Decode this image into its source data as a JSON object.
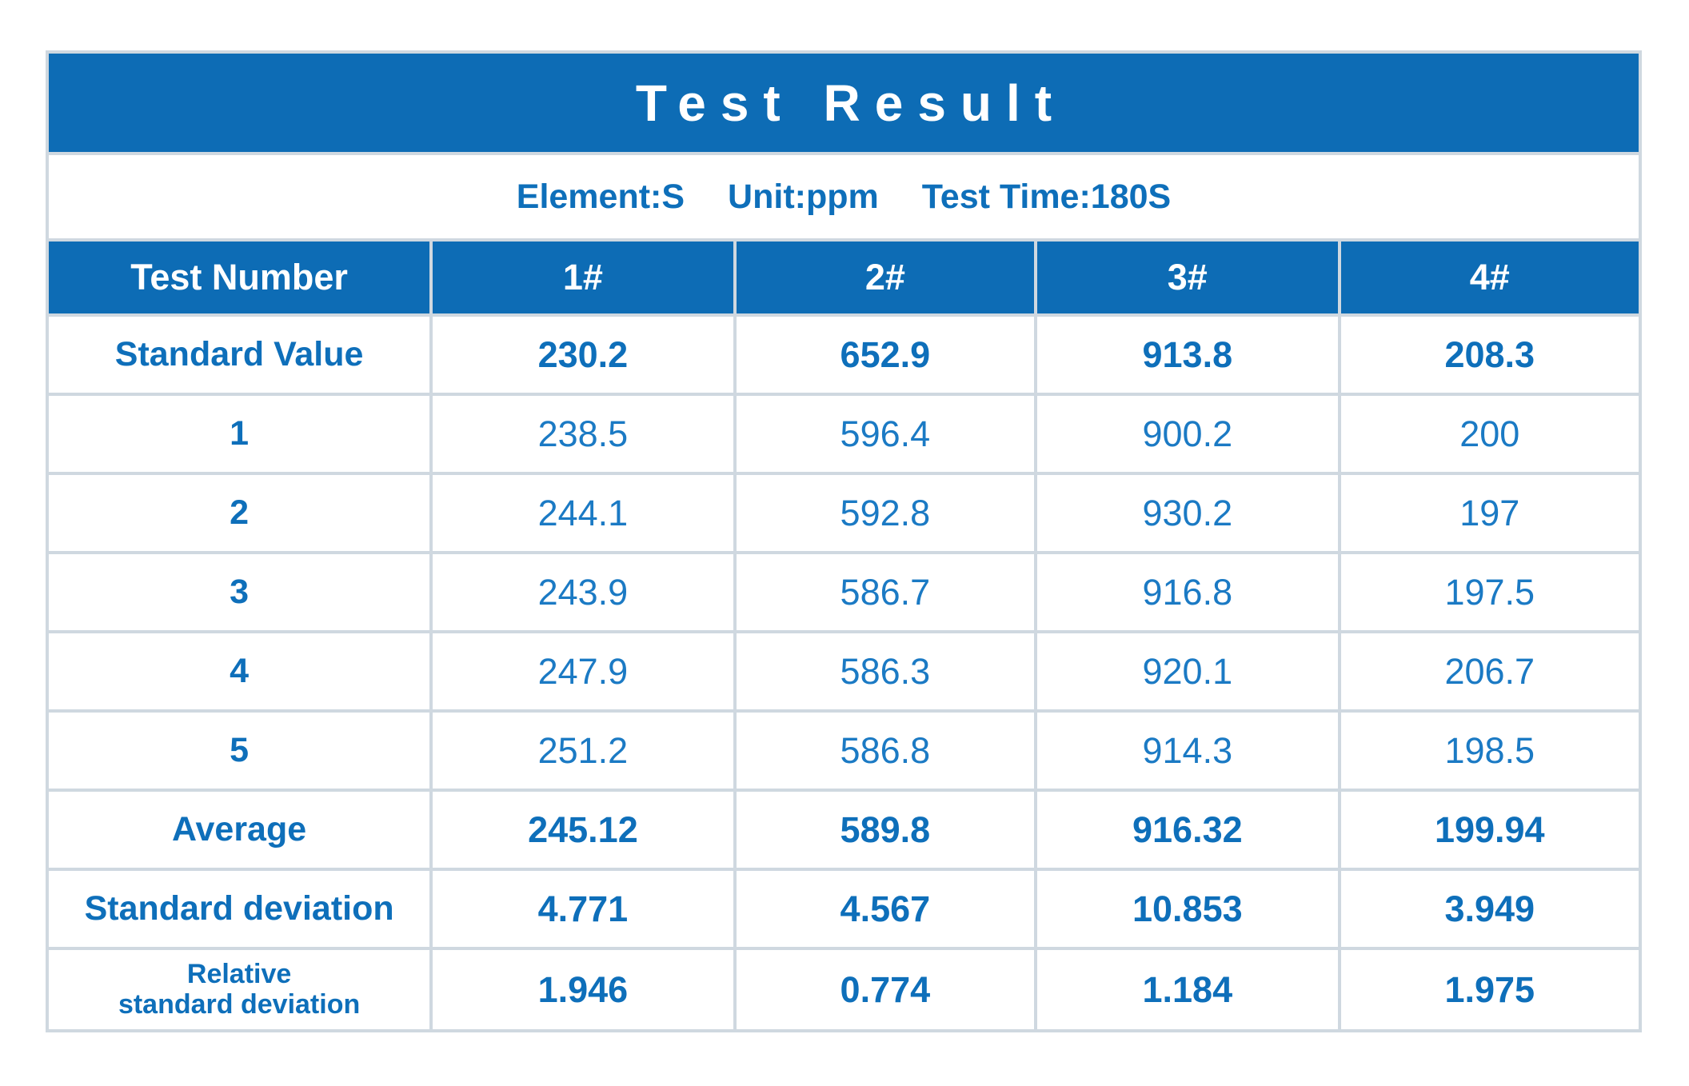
{
  "colors": {
    "header_blue": "#0d6cb5",
    "label_blue": "#0e6fba",
    "value_blue": "#1b7ac4",
    "border_gray": "#cfd8e0",
    "title_text": "#ffffff",
    "background": "#ffffff"
  },
  "chart_data": {
    "type": "table",
    "title": "Test Result",
    "subtitle": {
      "element": "Element:S",
      "unit": "Unit:ppm",
      "test_time": "Test Time:180S"
    },
    "columns": [
      "Test Number",
      "1#",
      "2#",
      "3#",
      "4#"
    ],
    "rows": [
      {
        "label": "Standard Value",
        "values": [
          230.2,
          652.9,
          913.8,
          208.3
        ]
      },
      {
        "label": "1",
        "values": [
          238.5,
          596.4,
          900.2,
          200
        ]
      },
      {
        "label": "2",
        "values": [
          244.1,
          592.8,
          930.2,
          197
        ]
      },
      {
        "label": "3",
        "values": [
          243.9,
          586.7,
          916.8,
          197.5
        ]
      },
      {
        "label": "4",
        "values": [
          247.9,
          586.3,
          920.1,
          206.7
        ]
      },
      {
        "label": "5",
        "values": [
          251.2,
          586.8,
          914.3,
          198.5
        ]
      },
      {
        "label": "Average",
        "values": [
          245.12,
          589.8,
          916.32,
          199.94
        ]
      },
      {
        "label": "Standard deviation",
        "values": [
          4.771,
          4.567,
          10.853,
          3.949
        ]
      },
      {
        "label": "Relative standard deviation",
        "label_lines": [
          "Relative",
          "standard deviation"
        ],
        "values": [
          1.946,
          0.774,
          1.184,
          1.975
        ]
      }
    ]
  }
}
